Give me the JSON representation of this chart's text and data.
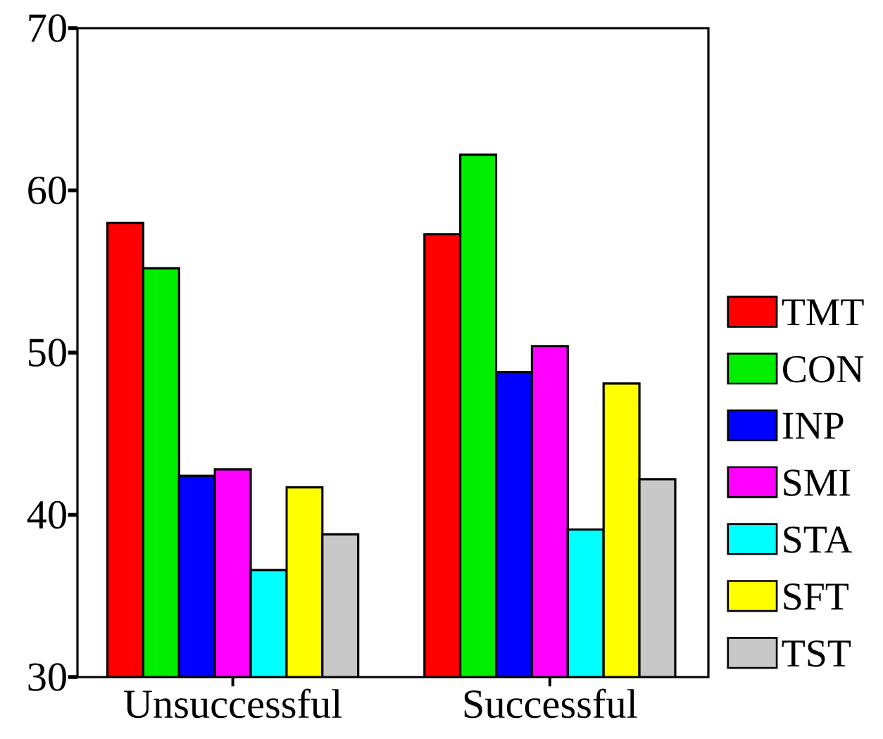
{
  "chart_data": {
    "type": "bar",
    "categories": [
      "Unsuccessful",
      "Successful"
    ],
    "series": [
      {
        "name": "TMT",
        "color": "#ff0000",
        "values": [
          58.0,
          57.3
        ]
      },
      {
        "name": "CON",
        "color": "#00ee00",
        "values": [
          55.2,
          62.2
        ]
      },
      {
        "name": "INP",
        "color": "#0000ff",
        "values": [
          42.4,
          48.8
        ]
      },
      {
        "name": "SMI",
        "color": "#ff00ff",
        "values": [
          42.8,
          50.4
        ]
      },
      {
        "name": "STA",
        "color": "#00ffff",
        "values": [
          36.6,
          39.1
        ]
      },
      {
        "name": "SFT",
        "color": "#ffff00",
        "values": [
          41.7,
          48.1
        ]
      },
      {
        "name": "TST",
        "color": "#c8c8c8",
        "values": [
          38.8,
          42.2
        ]
      }
    ],
    "ylim": [
      30,
      70
    ],
    "yticks": [
      30,
      40,
      50,
      60,
      70
    ],
    "grid": false,
    "legend": "right"
  }
}
